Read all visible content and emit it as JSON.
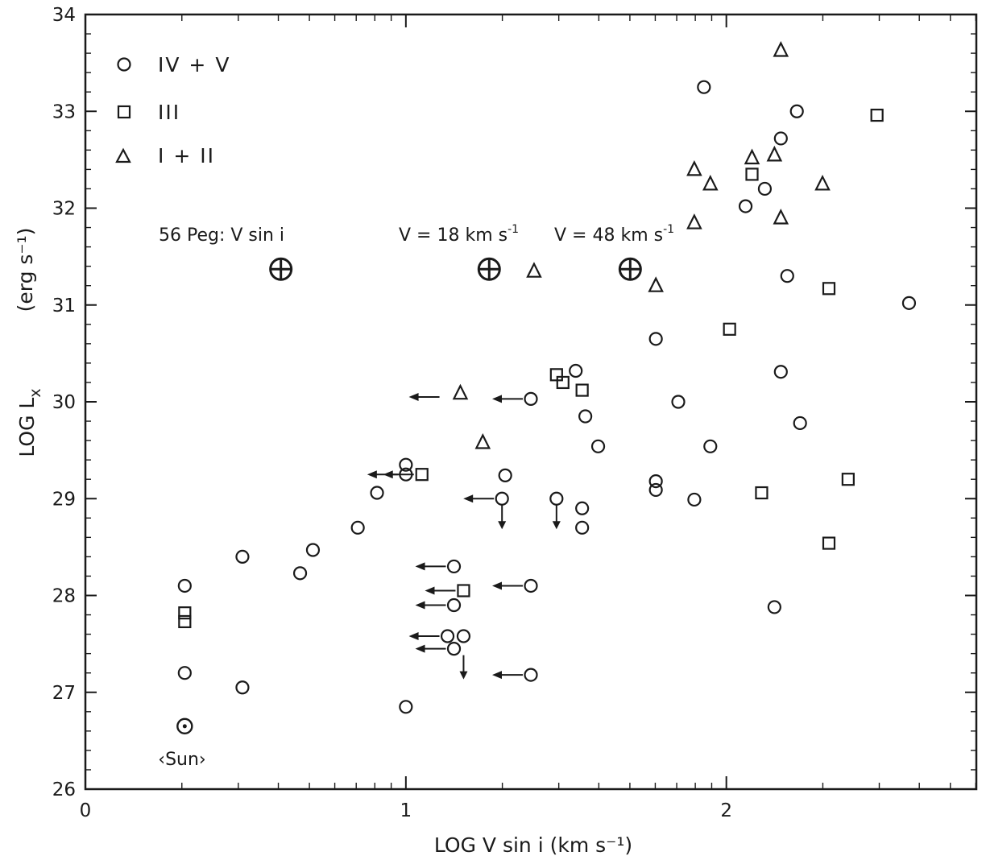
{
  "chart_data": {
    "type": "scatter",
    "xlabel": "LOG V sin i (km s⁻¹)",
    "ylabel": "LOG L",
    "ylabel_sub": "x",
    "ylabel_units": "(erg s⁻¹)",
    "xlim": [
      0,
      2.78
    ],
    "ylim": [
      26,
      34
    ],
    "x_ticks": [
      0,
      1,
      2
    ],
    "y_ticks": [
      26,
      27,
      28,
      29,
      30,
      31,
      32,
      33,
      34
    ],
    "grid": false,
    "legend_position": "top-left",
    "legend": [
      {
        "symbol": "circle",
        "label": "IV + V"
      },
      {
        "symbol": "square",
        "label": "III"
      },
      {
        "symbol": "triangle",
        "label": "I + II"
      }
    ],
    "annotations": {
      "peg_label": "56 Peg:  V sin i",
      "v18_label": "V = 18 km s",
      "v48_label": "V = 48 km s",
      "unit_exp": "-1",
      "sun_label": "‹Sun›"
    },
    "special_points": [
      {
        "x": 0.61,
        "y": 31.37,
        "symbol": "earth"
      },
      {
        "x": 1.26,
        "y": 31.37,
        "symbol": "earth"
      },
      {
        "x": 1.7,
        "y": 31.37,
        "symbol": "earth"
      },
      {
        "x": 0.31,
        "y": 26.65,
        "symbol": "sun"
      }
    ],
    "series": [
      {
        "name": "IV + V",
        "symbol": "circle",
        "points": [
          [
            0.31,
            28.1
          ],
          [
            0.31,
            27.2
          ],
          [
            0.49,
            28.4
          ],
          [
            0.49,
            27.05
          ],
          [
            0.67,
            28.23
          ],
          [
            0.71,
            28.47
          ],
          [
            0.85,
            28.7
          ],
          [
            0.91,
            29.06
          ],
          [
            1.0,
            29.35
          ],
          [
            1.0,
            29.25
          ],
          [
            1.0,
            26.85
          ],
          [
            1.15,
            28.3
          ],
          [
            1.15,
            27.9
          ],
          [
            1.13,
            27.58
          ],
          [
            1.18,
            27.58
          ],
          [
            1.15,
            27.45
          ],
          [
            1.31,
            29.24
          ],
          [
            1.3,
            29.0
          ],
          [
            1.39,
            30.03
          ],
          [
            1.39,
            28.1
          ],
          [
            1.39,
            27.18
          ],
          [
            1.47,
            29.0
          ],
          [
            1.53,
            30.32
          ],
          [
            1.56,
            29.85
          ],
          [
            1.55,
            28.9
          ],
          [
            1.55,
            28.7
          ],
          [
            1.6,
            29.54
          ],
          [
            1.78,
            30.65
          ],
          [
            1.78,
            29.18
          ],
          [
            1.78,
            29.09
          ],
          [
            1.85,
            30.0
          ],
          [
            1.9,
            28.99
          ],
          [
            1.95,
            29.54
          ],
          [
            1.93,
            33.25
          ],
          [
            2.06,
            32.02
          ],
          [
            2.12,
            32.2
          ],
          [
            2.17,
            32.72
          ],
          [
            2.19,
            31.3
          ],
          [
            2.17,
            30.31
          ],
          [
            2.15,
            27.88
          ],
          [
            2.22,
            33.0
          ],
          [
            2.23,
            29.78
          ],
          [
            2.57,
            31.02
          ]
        ]
      },
      {
        "name": "III",
        "symbol": "square",
        "points": [
          [
            0.31,
            27.82
          ],
          [
            0.31,
            27.73
          ],
          [
            1.05,
            29.25
          ],
          [
            1.18,
            28.05
          ],
          [
            1.47,
            30.28
          ],
          [
            1.49,
            30.2
          ],
          [
            1.55,
            30.12
          ],
          [
            2.01,
            30.75
          ],
          [
            2.08,
            32.35
          ],
          [
            2.11,
            29.06
          ],
          [
            2.32,
            31.17
          ],
          [
            2.32,
            28.54
          ],
          [
            2.38,
            29.2
          ],
          [
            2.47,
            32.96
          ]
        ]
      },
      {
        "name": "I + II",
        "symbol": "triangle",
        "points": [
          [
            1.17,
            30.09
          ],
          [
            1.24,
            29.58
          ],
          [
            1.4,
            31.35
          ],
          [
            1.78,
            31.2
          ],
          [
            1.9,
            32.4
          ],
          [
            1.9,
            31.85
          ],
          [
            1.95,
            32.25
          ],
          [
            2.08,
            32.52
          ],
          [
            2.15,
            32.55
          ],
          [
            2.17,
            31.9
          ],
          [
            2.17,
            33.63
          ],
          [
            2.3,
            32.25
          ]
        ]
      }
    ],
    "upper_limits_x": [
      [
        1.13,
        30.05
      ],
      [
        1.0,
        29.25
      ],
      [
        1.05,
        29.25
      ],
      [
        1.3,
        29.0
      ],
      [
        1.39,
        30.03
      ],
      [
        1.15,
        28.3
      ],
      [
        1.18,
        28.05
      ],
      [
        1.15,
        27.9
      ],
      [
        1.13,
        27.58
      ],
      [
        1.15,
        27.45
      ],
      [
        1.39,
        28.1
      ],
      [
        1.39,
        27.18
      ]
    ],
    "upper_limits_y": [
      [
        1.3,
        29.0
      ],
      [
        1.47,
        29.0
      ],
      [
        1.18,
        27.45
      ]
    ]
  }
}
